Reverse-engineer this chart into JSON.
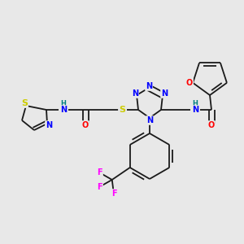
{
  "bg_color": "#e8e8e8",
  "bond_color": "#1a1a1a",
  "bond_width": 1.3,
  "atom_colors": {
    "N": "#0000ff",
    "O": "#ff0000",
    "S": "#cccc00",
    "F": "#ff00ff",
    "H": "#008080",
    "C": "#1a1a1a"
  },
  "font_size": 7.0
}
